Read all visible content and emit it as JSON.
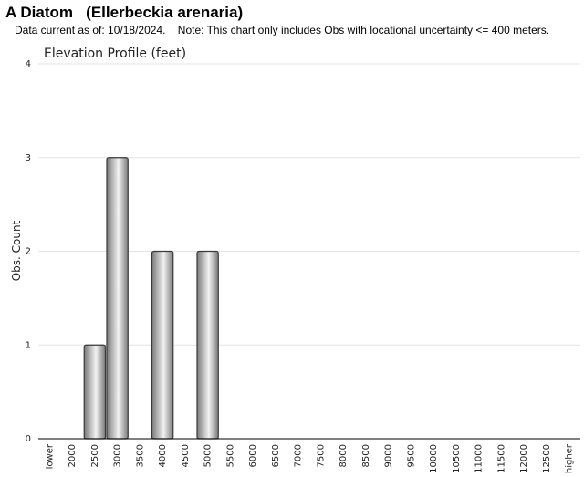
{
  "header": {
    "title": "A Diatom   (Ellerbeckia arenaria)",
    "subtitle": "Data current as of: 10/18/2024.    Note: This chart only includes Obs with locational uncertainty <= 400 meters."
  },
  "chart_data": {
    "type": "bar",
    "title": "Elevation Profile (feet)",
    "xlabel": "",
    "ylabel": "Obs. Count",
    "categories": [
      "lower",
      "2000",
      "2500",
      "3000",
      "3500",
      "4000",
      "4500",
      "5000",
      "5500",
      "6000",
      "6500",
      "7000",
      "7500",
      "8000",
      "8500",
      "9000",
      "9500",
      "10000",
      "10500",
      "11000",
      "11500",
      "12000",
      "12500",
      "higher"
    ],
    "values": [
      0,
      0,
      1,
      3,
      0,
      2,
      0,
      2,
      0,
      0,
      0,
      0,
      0,
      0,
      0,
      0,
      0,
      0,
      0,
      0,
      0,
      0,
      0,
      0
    ],
    "yticks": [
      0,
      1,
      2,
      3,
      4
    ],
    "ylim": [
      0,
      4
    ],
    "grid": true,
    "colors": {
      "bar_dark": "#7a7a7a",
      "bar_light": "#f2f2f2",
      "bar_stroke": "#3a3a3a",
      "grid": "#e3e3e3",
      "axis": "#000000"
    }
  }
}
